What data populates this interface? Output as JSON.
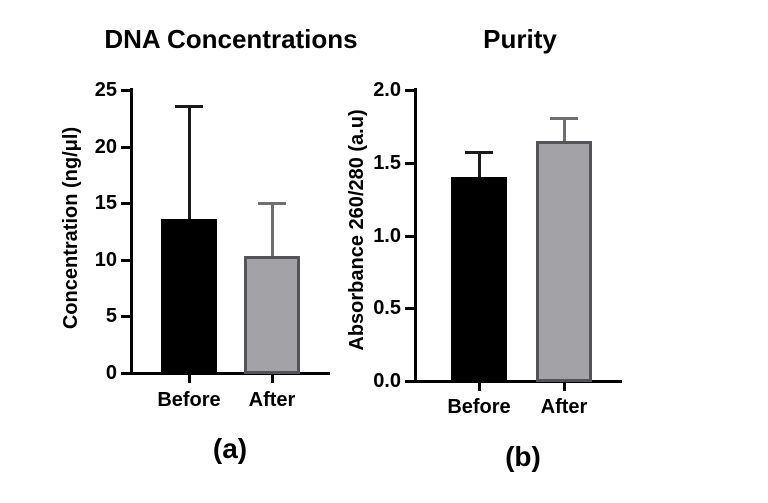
{
  "figure": {
    "background_color": "#ffffff",
    "text_color": "#000000"
  },
  "chart_data": [
    {
      "type": "bar",
      "panel_label": "(a)",
      "title": "DNA Concentrations",
      "xlabel": "",
      "ylabel": "Concentration (ng/μl)",
      "categories": [
        "Before",
        "After"
      ],
      "values": [
        13.6,
        10.3
      ],
      "errors_upper": [
        9.9,
        4.6
      ],
      "error_bar_tops": [
        23.5,
        14.9
      ],
      "ylim": [
        0,
        25
      ],
      "yticks": [
        0,
        5,
        10,
        15,
        20,
        25
      ],
      "ytick_labels": [
        "0",
        "5",
        "10",
        "15",
        "20",
        "25"
      ],
      "grid": false,
      "legend": "none",
      "bar_fill_colors": [
        "#000000",
        "#a3a2a6"
      ],
      "bar_border_colors": [
        "#000000",
        "#545458"
      ],
      "error_bar_colors": [
        "#1a1a1a",
        "#6e6e72"
      ]
    },
    {
      "type": "bar",
      "panel_label": "(b)",
      "title": "Purity",
      "xlabel": "",
      "ylabel": "Absorbance 260/280 (a.u)",
      "categories": [
        "Before",
        "After"
      ],
      "values": [
        1.4,
        1.65
      ],
      "errors_upper": [
        0.17,
        0.15
      ],
      "error_bar_tops": [
        1.57,
        1.8
      ],
      "ylim": [
        0,
        2.0
      ],
      "yticks": [
        0,
        0.5,
        1.0,
        1.5,
        2.0
      ],
      "ytick_labels": [
        "0.0",
        "0.5",
        "1.0",
        "1.5",
        "2.0"
      ],
      "grid": false,
      "legend": "none",
      "bar_fill_colors": [
        "#000000",
        "#a3a2a6"
      ],
      "bar_border_colors": [
        "#000000",
        "#545458"
      ],
      "error_bar_colors": [
        "#1a1a1a",
        "#6e6e72"
      ]
    }
  ]
}
